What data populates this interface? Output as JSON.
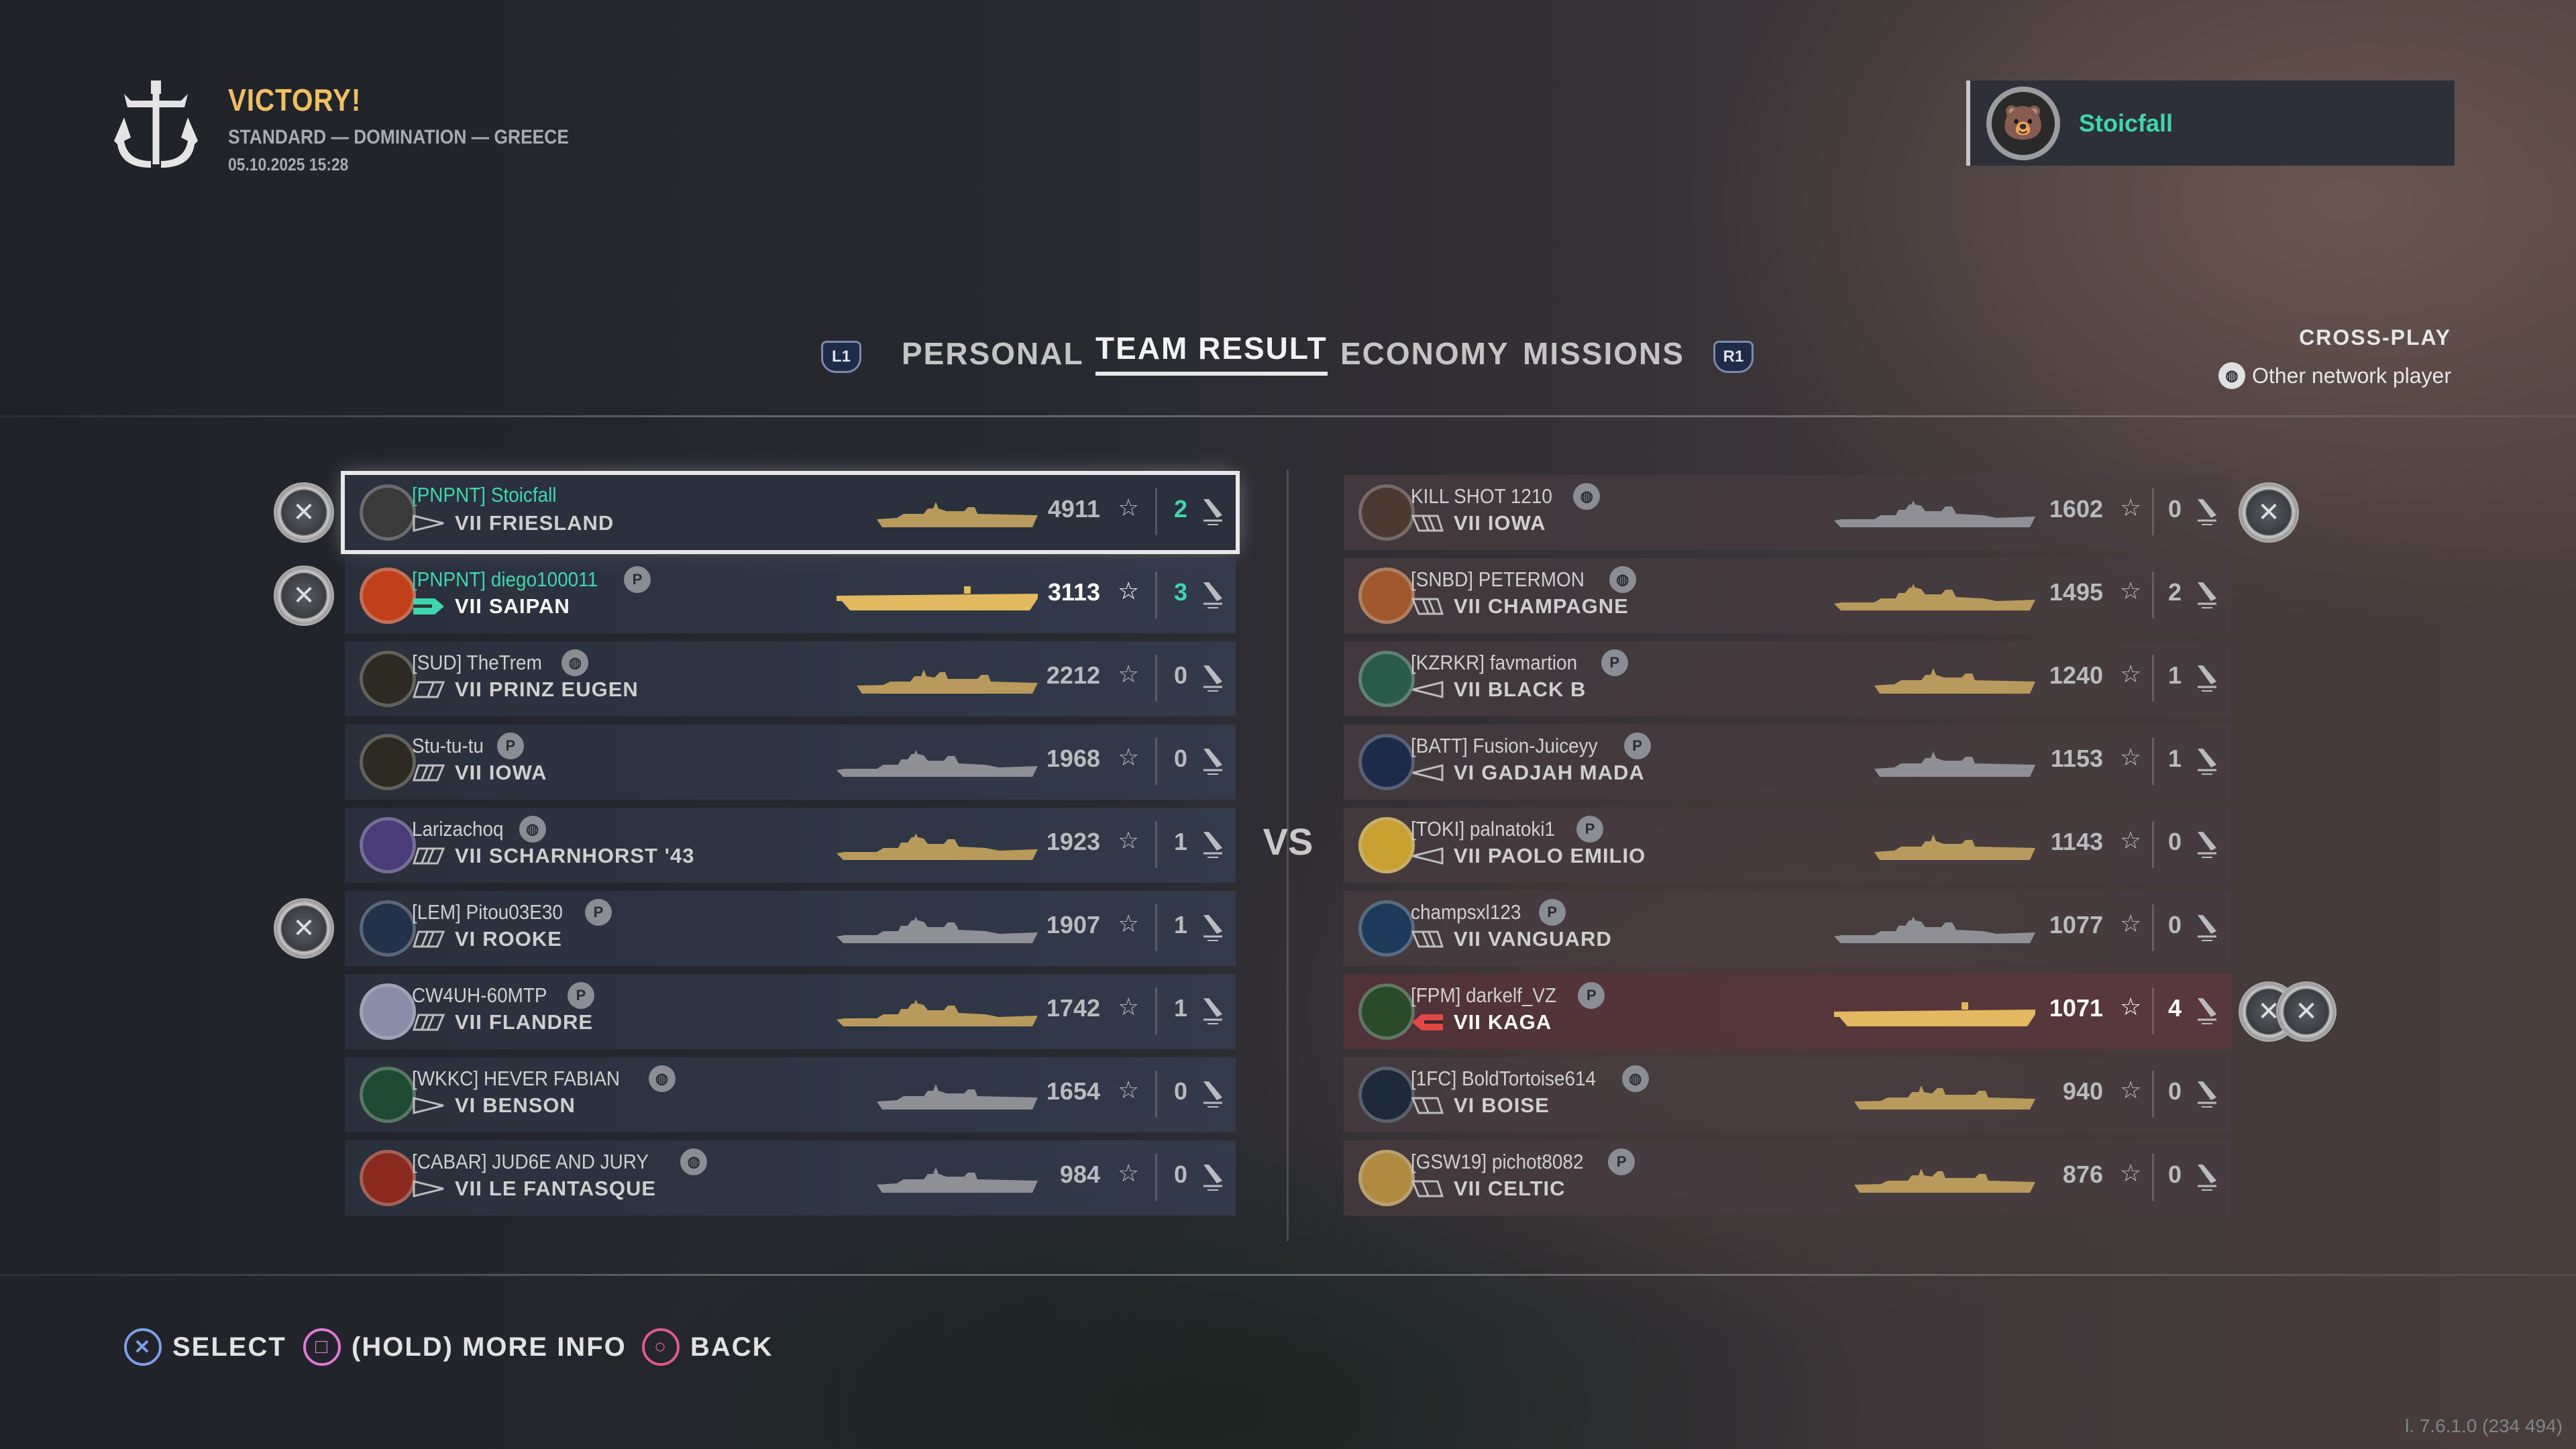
{
  "header": {
    "result": "VICTORY!",
    "mode": "STANDARD — DOMINATION — GREECE",
    "datetime": "05.10.2025 15:28",
    "logo_icon": "anchor-emblem-icon"
  },
  "player_card": {
    "name": "Stoicfall",
    "emblem_icon": "bear-emblem-icon"
  },
  "tabs": {
    "left_bumper": "L1",
    "right_bumper": "R1",
    "items": [
      {
        "label": "PERSONAL"
      },
      {
        "label": "TEAM RESULT",
        "active": true
      },
      {
        "label": "ECONOMY"
      },
      {
        "label": "MISSIONS"
      }
    ]
  },
  "crossplay": {
    "title": "CROSS-PLAY",
    "legend": "Other network player",
    "icon": "globe-icon"
  },
  "vs_label": "VS",
  "colors": {
    "platoon": "#3fd6b0",
    "victory": "#f0c060",
    "ship_gold": "#b89a5c",
    "ship_grey": "#8e9096",
    "carrier_gold": "#e2b860",
    "enemy_cv": "#e04848"
  },
  "allies": [
    {
      "clan": "[PNPNT]",
      "name": "Stoicfall",
      "platoon": true,
      "network": "none",
      "tier": "VII",
      "ship": "FRIESLAND",
      "class": "destroyer",
      "premium": true,
      "score": "4911",
      "frags": "2",
      "medals": 1,
      "selected": true,
      "emblem": "#3a3a3a"
    },
    {
      "clan": "[PNPNT]",
      "name": "diego100011",
      "platoon": true,
      "network": "playstation",
      "tier": "VII",
      "ship": "SAIPAN",
      "class": "carrier",
      "premium": true,
      "score": "3113",
      "frags": "3",
      "medals": 1,
      "bold": true,
      "emblem": "#c0401c"
    },
    {
      "clan": "[SUD]",
      "name": "TheTrem",
      "network": "globe",
      "tier": "VII",
      "ship": "PRINZ EUGEN",
      "class": "cruiser",
      "premium": true,
      "score": "2212",
      "frags": "0",
      "medals": 0,
      "emblem": "#2d2a22"
    },
    {
      "clan": "",
      "name": "Stu-tu-tu",
      "network": "playstation",
      "tier": "VII",
      "ship": "IOWA",
      "class": "battleship",
      "premium": false,
      "score": "1968",
      "frags": "0",
      "medals": 0,
      "emblem": "#2d2a22"
    },
    {
      "clan": "",
      "name": "Larizachoq",
      "network": "globe",
      "tier": "VII",
      "ship": "SCHARNHORST '43",
      "class": "battleship",
      "premium": true,
      "score": "1923",
      "frags": "1",
      "medals": 0,
      "emblem": "#4a3c78"
    },
    {
      "clan": "[LEM]",
      "name": "Pitou03E30",
      "network": "playstation",
      "tier": "VI",
      "ship": "ROOKE",
      "class": "battleship",
      "premium": false,
      "score": "1907",
      "frags": "1",
      "medals": 1,
      "emblem": "#23324a"
    },
    {
      "clan": "",
      "name": "CW4UH-60MTP",
      "network": "playstation",
      "tier": "VII",
      "ship": "FLANDRE",
      "class": "battleship",
      "premium": true,
      "score": "1742",
      "frags": "1",
      "medals": 0,
      "emblem": "#8a8ca8"
    },
    {
      "clan": "[WKKC]",
      "name": "HEVER FABIAN",
      "network": "globe",
      "tier": "VI",
      "ship": "BENSON",
      "class": "destroyer",
      "premium": false,
      "score": "1654",
      "frags": "0",
      "medals": 0,
      "emblem": "#1e4a32"
    },
    {
      "clan": "[CABAR]",
      "name": "JUD6E AND JURY",
      "network": "globe",
      "tier": "VII",
      "ship": "LE FANTASQUE",
      "class": "destroyer",
      "premium": false,
      "score": "984",
      "frags": "0",
      "medals": 0,
      "emblem": "#8a2a1e"
    }
  ],
  "enemies": [
    {
      "clan": "",
      "name": "KILL SHOT 1210",
      "network": "globe",
      "tier": "VII",
      "ship": "IOWA",
      "class": "battleship",
      "premium": false,
      "score": "1602",
      "frags": "0",
      "medals": 1,
      "emblem": "#4a3a32"
    },
    {
      "clan": "[SNBD]",
      "name": "PETERMON",
      "network": "globe",
      "tier": "VII",
      "ship": "CHAMPAGNE",
      "class": "battleship",
      "premium": true,
      "score": "1495",
      "frags": "2",
      "medals": 0,
      "emblem": "#a0582c"
    },
    {
      "clan": "[KZRKR]",
      "name": "favmartion",
      "network": "playstation",
      "tier": "VII",
      "ship": "BLACK B",
      "class": "destroyer",
      "premium": true,
      "score": "1240",
      "frags": "1",
      "medals": 0,
      "emblem": "#2a5a4a"
    },
    {
      "clan": "[BATT]",
      "name": "Fusion-Juiceyy",
      "network": "playstation",
      "tier": "VI",
      "ship": "GADJAH MADA",
      "class": "destroyer",
      "premium": false,
      "score": "1153",
      "frags": "1",
      "medals": 0,
      "emblem": "#1e2a4a"
    },
    {
      "clan": "[TOKI]",
      "name": "palnatoki1",
      "network": "playstation",
      "tier": "VII",
      "ship": "PAOLO EMILIO",
      "class": "destroyer",
      "premium": true,
      "score": "1143",
      "frags": "0",
      "medals": 0,
      "emblem": "#c8a030"
    },
    {
      "clan": "",
      "name": "champsxl123",
      "network": "playstation",
      "tier": "VII",
      "ship": "VANGUARD",
      "class": "battleship",
      "premium": false,
      "score": "1077",
      "frags": "0",
      "medals": 0,
      "emblem": "#1e3a5a"
    },
    {
      "clan": "[FPM]",
      "name": "darkelf_VZ",
      "network": "playstation",
      "tier": "VII",
      "ship": "KAGA",
      "class": "carrier",
      "premium": true,
      "score": "1071",
      "frags": "4",
      "medals": 2,
      "bold": true,
      "highlight": true,
      "emblem": "#2a4a2a"
    },
    {
      "clan": "[1FC]",
      "name": "BoldTortoise614",
      "network": "globe",
      "tier": "VI",
      "ship": "BOISE",
      "class": "cruiser",
      "premium": true,
      "score": "940",
      "frags": "0",
      "medals": 0,
      "emblem": "#1e2a3a"
    },
    {
      "clan": "[GSW19]",
      "name": "pichot8082",
      "network": "playstation",
      "tier": "VII",
      "ship": "CELTIC",
      "class": "cruiser",
      "premium": true,
      "score": "876",
      "frags": "0",
      "medals": 0,
      "emblem": "#b08a40"
    }
  ],
  "footer": {
    "select": "SELECT",
    "more_info": "(HOLD) MORE INFO",
    "back": "BACK"
  },
  "version": "l. 7.6.1.0 (234 494)"
}
